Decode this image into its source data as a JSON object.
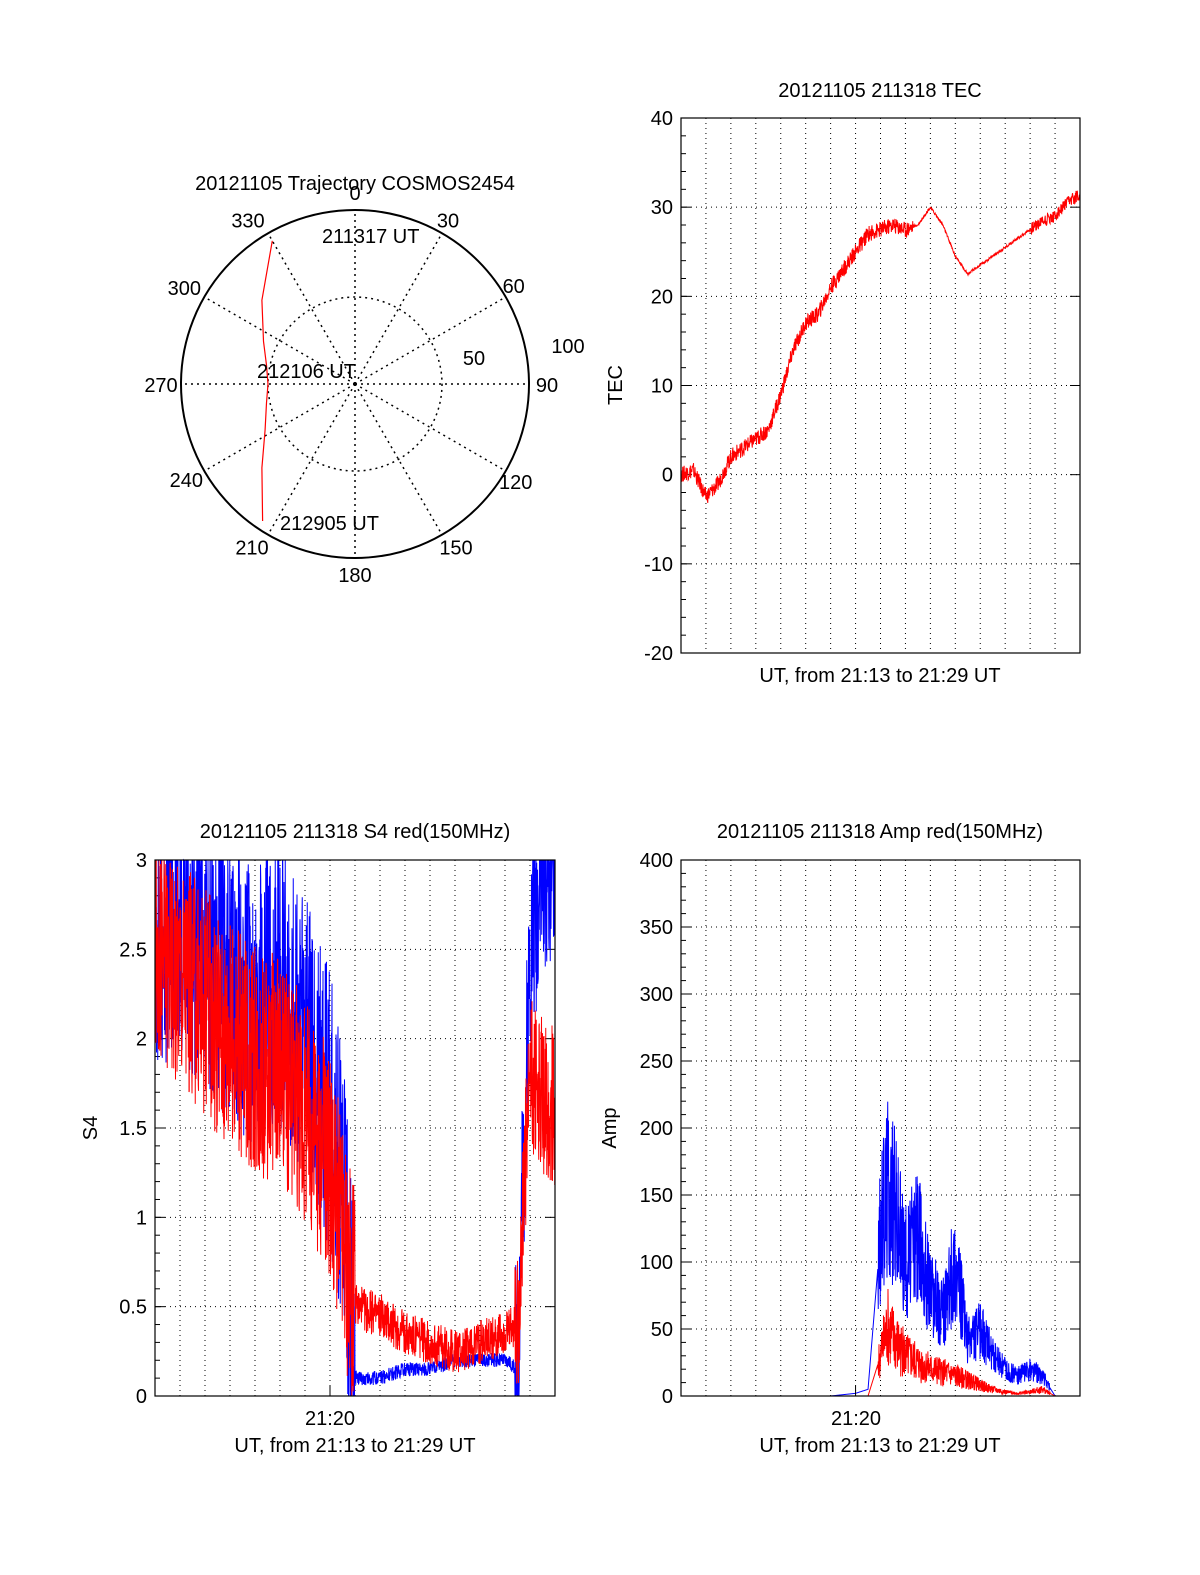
{
  "colors": {
    "red": "#ff0000",
    "blue": "#0000ff",
    "grid": "#000000"
  },
  "chart_data": [
    {
      "type": "polar",
      "title": "20121105 Trajectory COSMOS2454",
      "angle_labels": [
        "0",
        "30",
        "60",
        "90",
        "120",
        "150",
        "180",
        "210",
        "240",
        "270",
        "300",
        "330"
      ],
      "angles_deg": [
        0,
        30,
        60,
        90,
        120,
        150,
        180,
        210,
        240,
        270,
        300,
        330
      ],
      "radius_labels": [
        "50",
        "100"
      ],
      "radius_values": [
        50,
        100
      ],
      "rmax": 100,
      "annotations": [
        {
          "text": "211317 UT",
          "az": 20,
          "r": 45
        },
        {
          "text": "212106 UT",
          "az": 252,
          "r": 20
        },
        {
          "text": "212905 UT",
          "az": 210,
          "r": 90
        }
      ],
      "trajectory": {
        "az": [
          330,
          312,
          295,
          282,
          270,
          258,
          243,
          228,
          214
        ],
        "r": [
          95,
          72,
          58,
          52,
          50,
          52,
          58,
          72,
          95
        ]
      }
    },
    {
      "type": "line",
      "title": "20121105 211318 TEC",
      "xlabel": "UT, from 21:13 to 21:29 UT",
      "ylabel": "TEC",
      "ylim": [
        -20,
        40
      ],
      "yticks": [
        -20,
        -10,
        0,
        10,
        20,
        30,
        40
      ],
      "xlim": [
        0,
        16
      ],
      "series": [
        {
          "color": "red",
          "x": [
            0,
            0.5,
            1,
            1.5,
            2,
            2.5,
            3,
            3.5,
            4,
            4.5,
            5,
            5.5,
            6,
            6.5,
            7,
            7.5,
            8,
            8.5,
            9,
            9.5,
            10,
            10.5,
            11,
            11.5,
            12,
            12.5,
            13,
            13.5,
            14,
            14.5,
            15,
            15.5,
            16
          ],
          "y": [
            0,
            0.5,
            -2.5,
            -1,
            2,
            3,
            4,
            5,
            9,
            14,
            17,
            18,
            21,
            23,
            25,
            27,
            27.5,
            28,
            27.5,
            28,
            30,
            28,
            24.5,
            22.5,
            23.5,
            24.5,
            25.5,
            26.5,
            27.5,
            28.5,
            29,
            30.5,
            31.5
          ]
        }
      ]
    },
    {
      "type": "line",
      "title": "20121105 211318 S4 red(150MHz)",
      "xlabel": "UT, from 21:13 to 21:29 UT",
      "ylabel": "S4",
      "ylim": [
        0,
        3
      ],
      "yticks": [
        0,
        0.5,
        1,
        1.5,
        2,
        2.5,
        3
      ],
      "ytick_labels": [
        "0",
        "0.5",
        "1",
        "1.5",
        "2",
        "2.5",
        "3"
      ],
      "xlim": [
        0,
        16
      ],
      "xtick_label": "21:20",
      "xtick_value": 7,
      "series": [
        {
          "color": "blue",
          "x": [
            0,
            1,
            2,
            3,
            4,
            5,
            6,
            7,
            7.5,
            8,
            9,
            10,
            11,
            12,
            13,
            14,
            14.5,
            15,
            15.5,
            16
          ],
          "y": [
            2.6,
            2.7,
            2.5,
            2.3,
            2.2,
            2.3,
            2.0,
            1.6,
            1.2,
            0.1,
            0.1,
            0.15,
            0.15,
            0.2,
            0.2,
            0.2,
            0.15,
            2.5,
            3.0,
            3.0
          ]
        },
        {
          "color": "red",
          "x": [
            0,
            1,
            2,
            3,
            4,
            5,
            6,
            7,
            7.5,
            8,
            9,
            10,
            11,
            12,
            13,
            14,
            14.5,
            15,
            15.5,
            16
          ],
          "y": [
            2.5,
            2.4,
            2.2,
            2.0,
            1.9,
            1.8,
            1.6,
            1.3,
            0.9,
            0.5,
            0.45,
            0.35,
            0.3,
            0.25,
            0.3,
            0.35,
            0.4,
            1.8,
            1.7,
            1.6
          ]
        }
      ]
    },
    {
      "type": "line",
      "title": "20121105 211318 Amp red(150MHz)",
      "xlabel": "UT, from 21:13 to 21:29 UT",
      "ylabel": "Amp",
      "ylim": [
        0,
        400
      ],
      "yticks": [
        0,
        50,
        100,
        150,
        200,
        250,
        300,
        350,
        400
      ],
      "xlim": [
        0,
        16
      ],
      "xtick_label": "21:20",
      "xtick_value": 7,
      "series": [
        {
          "color": "blue",
          "x": [
            0,
            6,
            7,
            7.5,
            8,
            8.3,
            8.6,
            9,
            9.5,
            10,
            10.5,
            11,
            11.5,
            12,
            12.5,
            13,
            13.5,
            14,
            14.5,
            15,
            16
          ],
          "y": [
            0,
            0,
            2,
            5,
            120,
            160,
            140,
            100,
            120,
            80,
            60,
            100,
            40,
            50,
            30,
            20,
            15,
            20,
            15,
            0,
            0
          ]
        },
        {
          "color": "red",
          "x": [
            0,
            7.5,
            8,
            8.3,
            8.6,
            9,
            9.5,
            10,
            10.5,
            11,
            11.5,
            12,
            12.5,
            13,
            13.5,
            14,
            14.5,
            15,
            16
          ],
          "y": [
            0,
            0,
            30,
            50,
            40,
            30,
            25,
            20,
            18,
            15,
            12,
            8,
            5,
            3,
            2,
            3,
            5,
            0,
            0
          ]
        }
      ]
    }
  ]
}
